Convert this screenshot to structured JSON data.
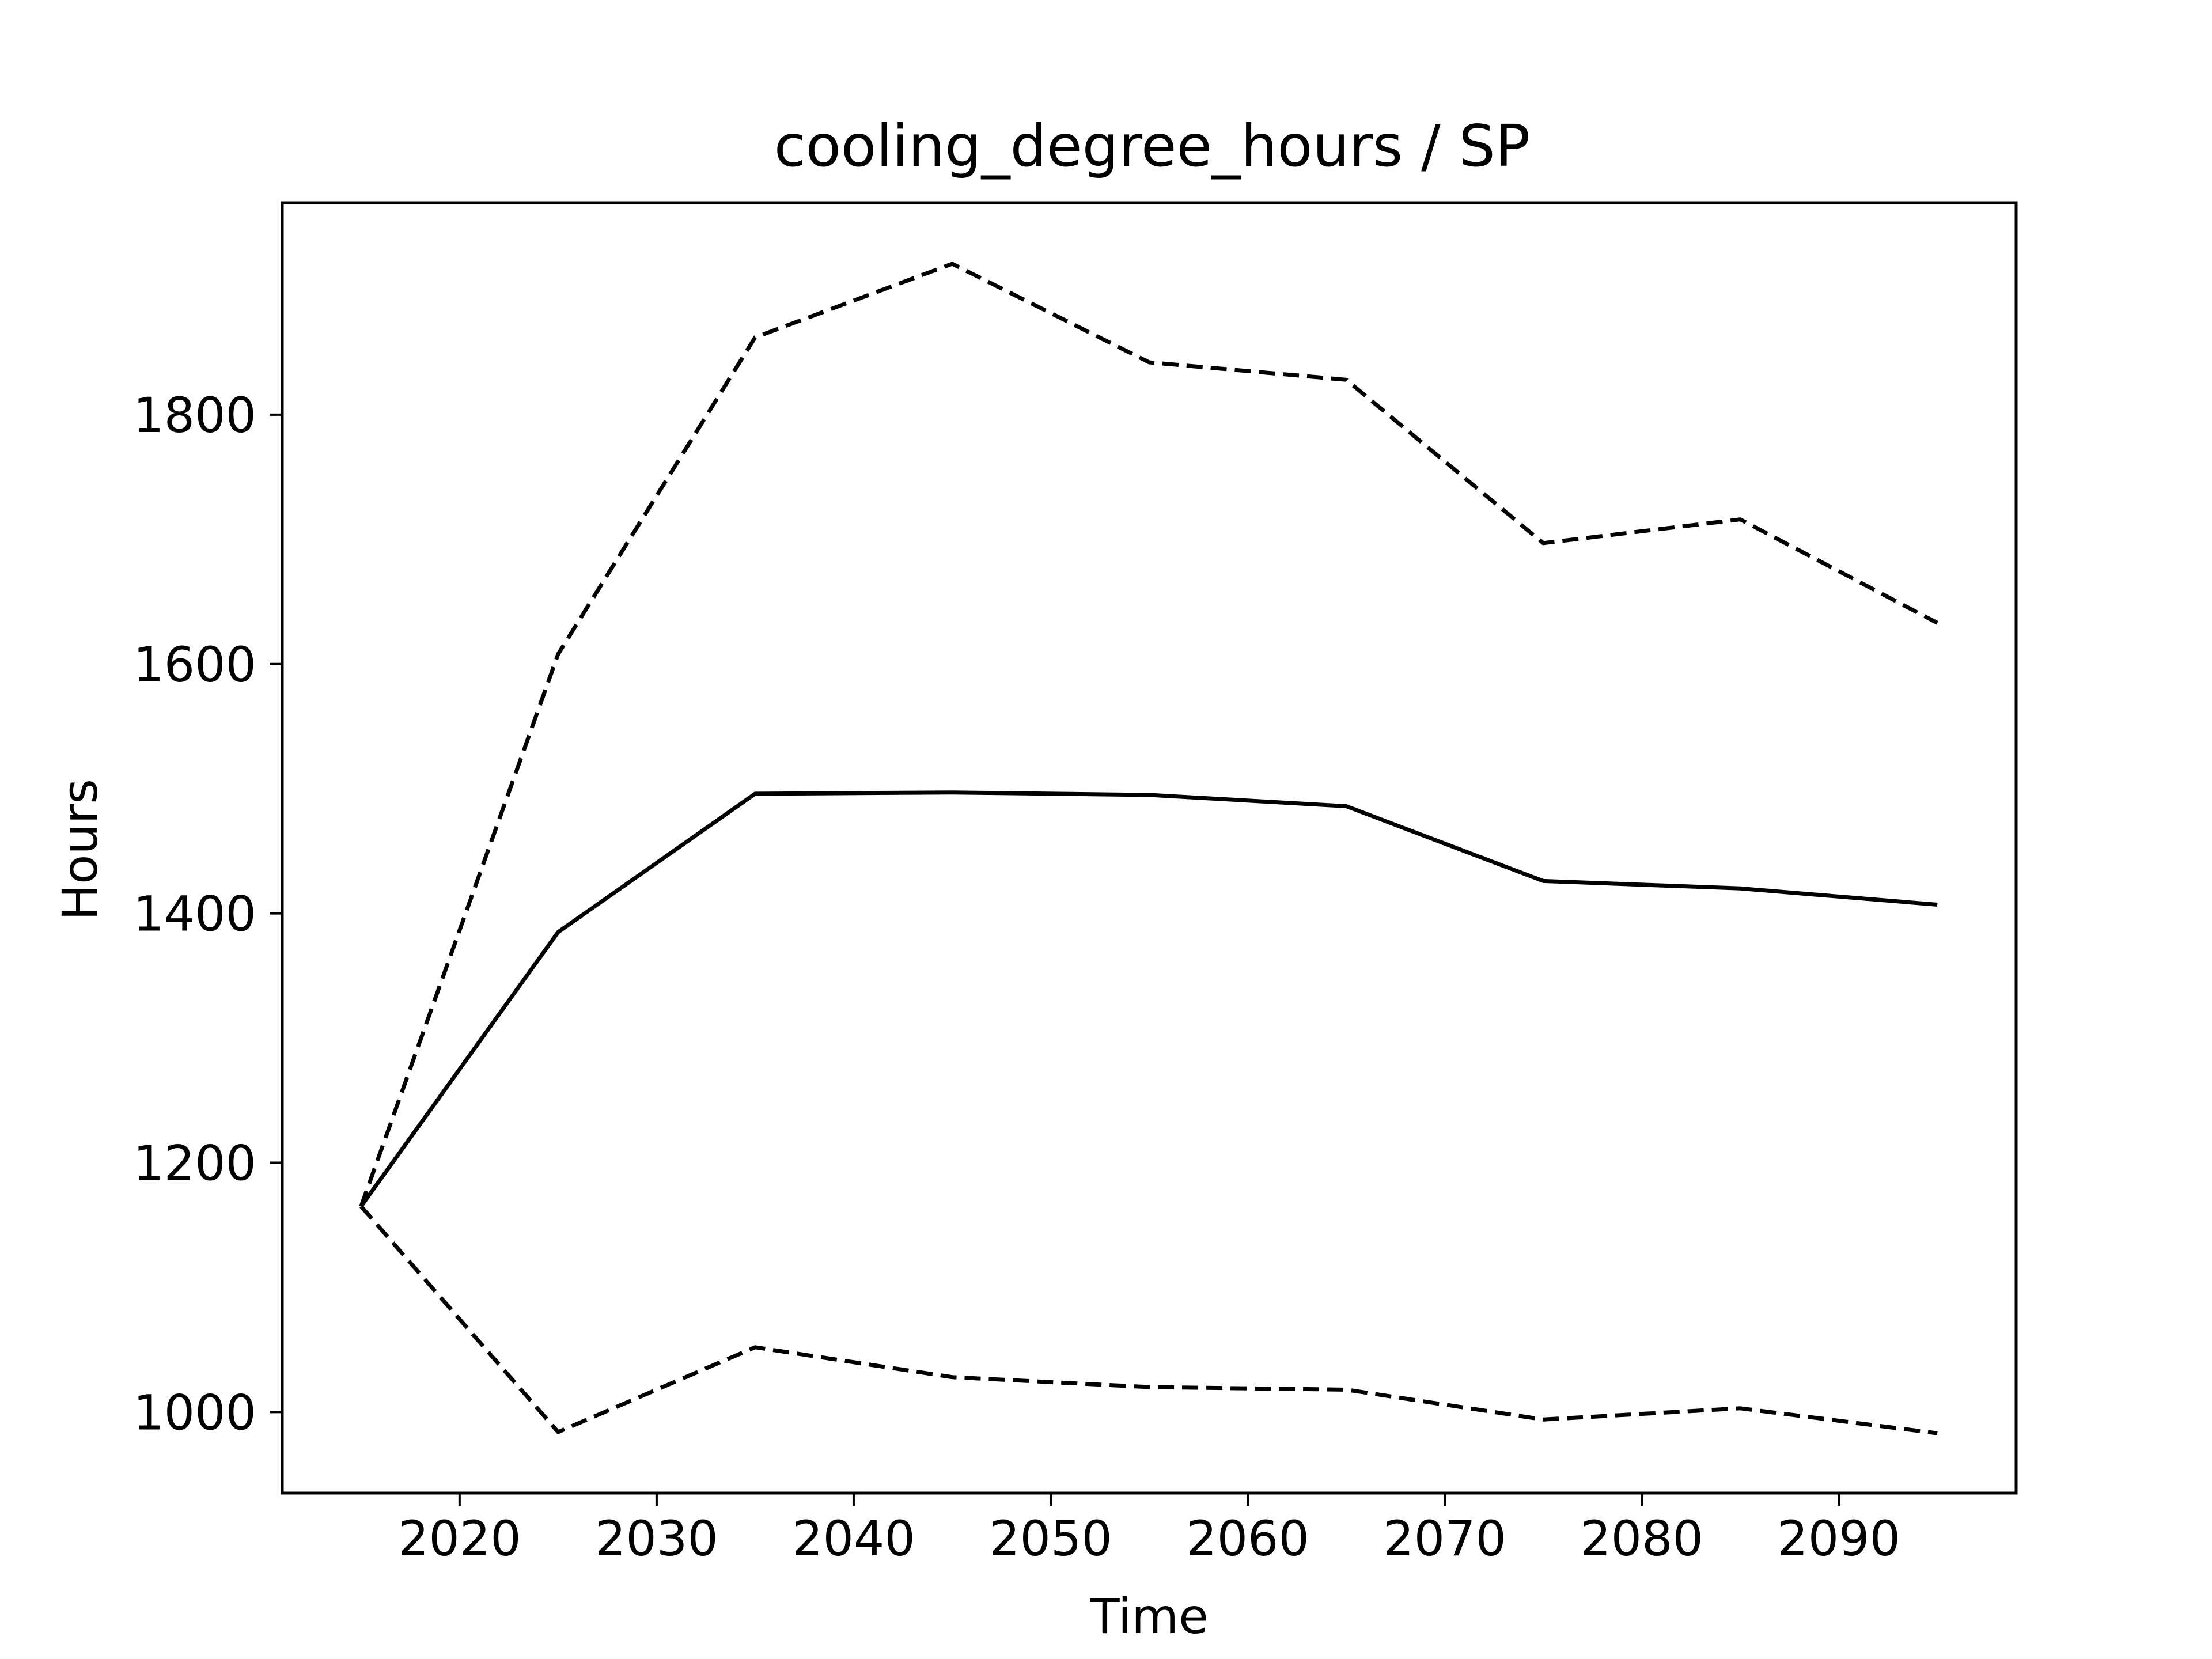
{
  "chart_data": {
    "type": "line",
    "title": "cooling_degree_hours / SP",
    "xlabel": "Time",
    "ylabel": "Hours",
    "xlim": [
      2011,
      2099
    ],
    "ylim": [
      935,
      1970
    ],
    "xticks": [
      2020,
      2030,
      2040,
      2050,
      2060,
      2070,
      2080,
      2090
    ],
    "yticks": [
      1000,
      1200,
      1400,
      1600,
      1800
    ],
    "grid": false,
    "legend": "none",
    "x": [
      2015,
      2025,
      2035,
      2045,
      2055,
      2065,
      2075,
      2085,
      2095
    ],
    "series": [
      {
        "style": "dashed",
        "color": "#000000",
        "values": [
          1165,
          1608,
          1862,
          1921,
          1842,
          1828,
          1697,
          1716,
          1633
        ]
      },
      {
        "style": "solid",
        "color": "#000000",
        "values": [
          1165,
          1385,
          1496,
          1497,
          1495,
          1486,
          1426,
          1420,
          1407
        ]
      },
      {
        "style": "dashed",
        "color": "#000000",
        "values": [
          1165,
          984,
          1052,
          1028,
          1020,
          1018,
          994,
          1003,
          983
        ]
      }
    ]
  }
}
